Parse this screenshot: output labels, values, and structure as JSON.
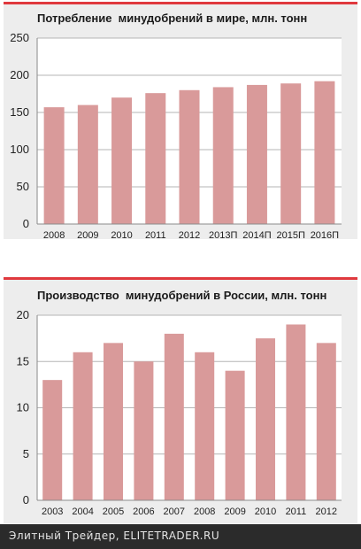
{
  "chart_data": [
    {
      "type": "bar",
      "title": "Потребление  минудобрений в мире, млн. тонн",
      "categories": [
        "2008",
        "2009",
        "2010",
        "2011",
        "2012",
        "2013П",
        "2014П",
        "2015П",
        "2016П"
      ],
      "values": [
        157,
        160,
        170,
        176,
        180,
        184,
        187,
        189,
        192
      ],
      "ylim": [
        0,
        250
      ],
      "yticks": [
        0,
        50,
        100,
        150,
        200,
        250
      ],
      "grid": true,
      "bar_color": "#d99a9a"
    },
    {
      "type": "bar",
      "title": "Производство  минудобрений в России, млн. тонн",
      "categories": [
        "2003",
        "2004",
        "2005",
        "2006",
        "2007",
        "2008",
        "2009",
        "2010",
        "2011",
        "2012"
      ],
      "values": [
        13,
        16,
        17,
        15,
        18,
        16,
        14,
        17.5,
        19,
        17
      ],
      "ylim": [
        0,
        20
      ],
      "yticks": [
        0,
        5,
        10,
        15,
        20
      ],
      "grid": true,
      "bar_color": "#d99a9a"
    }
  ],
  "footer": {
    "text": "Элитный Трейдер, ELITETRADER.RU"
  }
}
